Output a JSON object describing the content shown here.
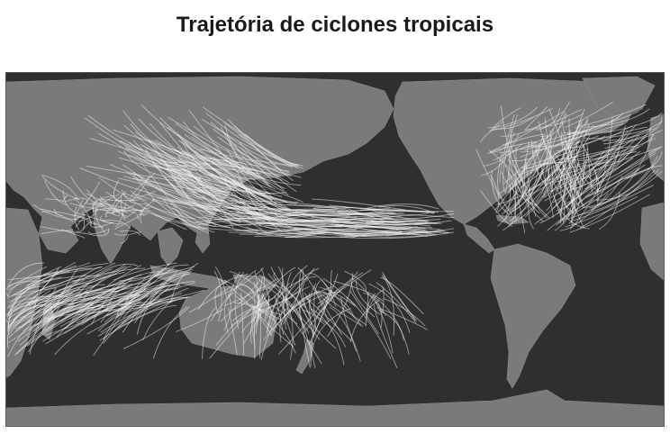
{
  "title": "Trajetória de ciclones tropicais",
  "colors": {
    "ocean": "#2f2f2f",
    "land": "#7a7a7a",
    "tracks": "#f2f2f2",
    "title": "#1a1a1a"
  },
  "map": {
    "projection": "equirectangular",
    "longitude_center": "Pacific",
    "basins": [
      "north-atlantic",
      "northwest-pacific",
      "northeast-pacific",
      "north-indian",
      "south-indian",
      "south-pacific"
    ]
  }
}
